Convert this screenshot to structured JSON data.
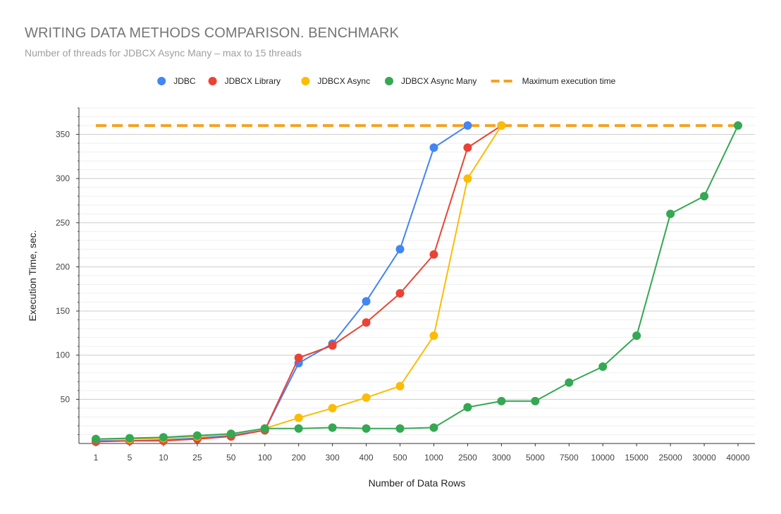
{
  "chart_data": {
    "type": "line",
    "title": "WRITING DATA METHODS COMPARISON. BENCHMARK",
    "subtitle": "Number of threads for JDBCX Async Many – max to 15 threads",
    "xlabel": "Number of Data Rows",
    "ylabel": "Execution Time, sec.",
    "ylim": [
      0,
      380
    ],
    "yticks": [
      50,
      100,
      150,
      200,
      250,
      300,
      350
    ],
    "minor_grid_step": 10,
    "legend_position": "top-center",
    "categories": [
      "1",
      "5",
      "10",
      "25",
      "50",
      "100",
      "200",
      "300",
      "400",
      "500",
      "1000",
      "2500",
      "3000",
      "5000",
      "7500",
      "10000",
      "15000",
      "25000",
      "30000",
      "40000"
    ],
    "series": [
      {
        "name": "JDBC",
        "color": "#4285f4",
        "values": [
          3,
          3,
          4,
          6,
          9,
          15,
          91,
          113,
          161,
          220,
          335,
          360,
          null,
          null,
          null,
          null,
          null,
          null,
          null,
          null
        ]
      },
      {
        "name": "JDBCX Library",
        "color": "#ea4335",
        "values": [
          2,
          3,
          3,
          5,
          8,
          15,
          97,
          111,
          137,
          170,
          214,
          335,
          360,
          null,
          null,
          null,
          null,
          null,
          null,
          null
        ]
      },
      {
        "name": "JDBCX Async",
        "color": "#fbbc04",
        "values": [
          5,
          5,
          6,
          8,
          11,
          17,
          29,
          40,
          52,
          65,
          122,
          300,
          360,
          null,
          null,
          null,
          null,
          null,
          null,
          null
        ]
      },
      {
        "name": "JDBCX Async Many",
        "color": "#34a853",
        "values": [
          5,
          6,
          7,
          9,
          11,
          17,
          17,
          18,
          17,
          17,
          18,
          41,
          48,
          48,
          69,
          87,
          122,
          260,
          280,
          360
        ]
      },
      {
        "name": "Maximum execution time",
        "color": "#f4a223",
        "dashed": true,
        "values": [
          360,
          360,
          360,
          360,
          360,
          360,
          360,
          360,
          360,
          360,
          360,
          360,
          360,
          360,
          360,
          360,
          360,
          360,
          360,
          360
        ]
      }
    ]
  }
}
